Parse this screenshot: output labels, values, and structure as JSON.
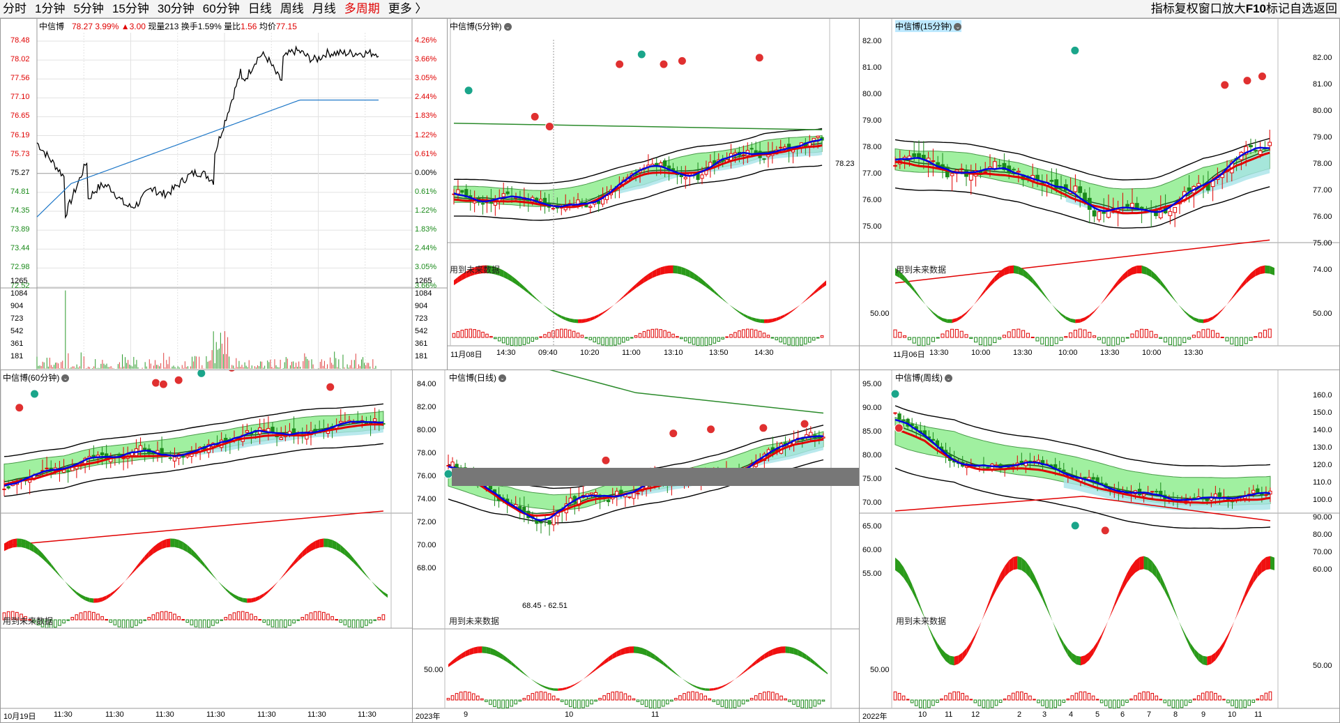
{
  "toolbar": {
    "periods": [
      "分时",
      "1分钟",
      "5分钟",
      "15分钟",
      "30分钟",
      "60分钟",
      "日线",
      "周线",
      "月线",
      "多周期",
      "更多 〉"
    ],
    "active_period": "多周期",
    "tools": [
      "指标",
      "复权",
      "窗口",
      "放大",
      "F10",
      "标记",
      "自选",
      "返回"
    ]
  },
  "intraday": {
    "stock": "中信博",
    "price": "78.27",
    "pct": "3.99%",
    "change": "▲3.00",
    "now_vol_label": "现量",
    "now_vol": "213",
    "turnover_label": "换手",
    "turnover": "1.59%",
    "vol_ratio_label": "量比",
    "vol_ratio": "1.56",
    "avg_label": "均价",
    "avg": "77.15",
    "price_ticks": [
      "78.48",
      "78.02",
      "77.56",
      "77.10",
      "76.65",
      "76.19",
      "75.73",
      "75.27",
      "74.81",
      "74.35",
      "73.89",
      "73.44",
      "72.98",
      "72.52"
    ],
    "pct_ticks": [
      "4.26%",
      "3.66%",
      "3.05%",
      "2.44%",
      "1.83%",
      "1.22%",
      "0.61%",
      "0.00%",
      "0.61%",
      "1.22%",
      "1.83%",
      "2.44%",
      "3.05%",
      "3.66%"
    ],
    "vol_ticks": [
      "1265",
      "1084",
      "904",
      "723",
      "542",
      "361",
      "181"
    ]
  },
  "panes": {
    "p5": {
      "title": "中信博(5分钟)",
      "hint": "用到未来数据",
      "last_label": "78.23",
      "xticks": [
        "11月08日",
        "14:30",
        "09:40",
        "10:20",
        "11:00",
        "13:10",
        "13:50",
        "14:30"
      ]
    },
    "p15": {
      "title": "中信博(15分钟)",
      "hint": "用到未来数据",
      "yticks": [
        "82.00",
        "81.00",
        "80.00",
        "79.00",
        "78.00",
        "77.00",
        "76.00",
        "75.00"
      ],
      "right_ticks": [
        "82.00",
        "81.00",
        "80.00",
        "79.00",
        "78.00",
        "77.00",
        "76.00",
        "75.00",
        "74.00"
      ],
      "sub_tick": "50.00",
      "xticks": [
        "11月06日",
        "13:30",
        "10:00",
        "13:30",
        "10:00",
        "13:30",
        "10:00",
        "13:30"
      ]
    },
    "p60": {
      "title": "中信博(60分钟)",
      "hint": "用到未来数据",
      "xticks": [
        "10月19日",
        "11:30",
        "11:30",
        "11:30",
        "11:30",
        "11:30",
        "11:30",
        "11:30"
      ]
    },
    "pday": {
      "title": "中信博(日线)",
      "hint": "用到未来数据",
      "range_label": "68.45 - 62.51",
      "yticks": [
        "84.00",
        "82.00",
        "80.00",
        "78.00",
        "76.00",
        "74.00",
        "72.00",
        "70.00",
        "68.00"
      ],
      "sub_tick": "50.00",
      "xticks": [
        "2023年",
        "9",
        "10",
        "11"
      ]
    },
    "pweek": {
      "title": "中信博(周线)",
      "hint": "用到未来数据",
      "yticks": [
        "95.00",
        "90.00",
        "85.00",
        "80.00",
        "75.00",
        "70.00",
        "65.00",
        "60.00",
        "55.00"
      ],
      "right_ticks": [
        "160.0",
        "150.0",
        "140.0",
        "130.0",
        "120.0",
        "110.0",
        "100.0",
        "90.00",
        "80.00",
        "70.00",
        "60.00"
      ],
      "sub_tick": "50.00",
      "xticks": [
        "2022年",
        "10",
        "11",
        "12",
        "2",
        "3",
        "4",
        "5",
        "6",
        "7",
        "8",
        "9",
        "10",
        "11"
      ]
    }
  },
  "colors": {
    "up": "#e00000",
    "down": "#1a8a1a",
    "blue": "#0000e0",
    "ma": "#e00000",
    "band": "#90ee90",
    "cyan": "#a8e4e8"
  }
}
